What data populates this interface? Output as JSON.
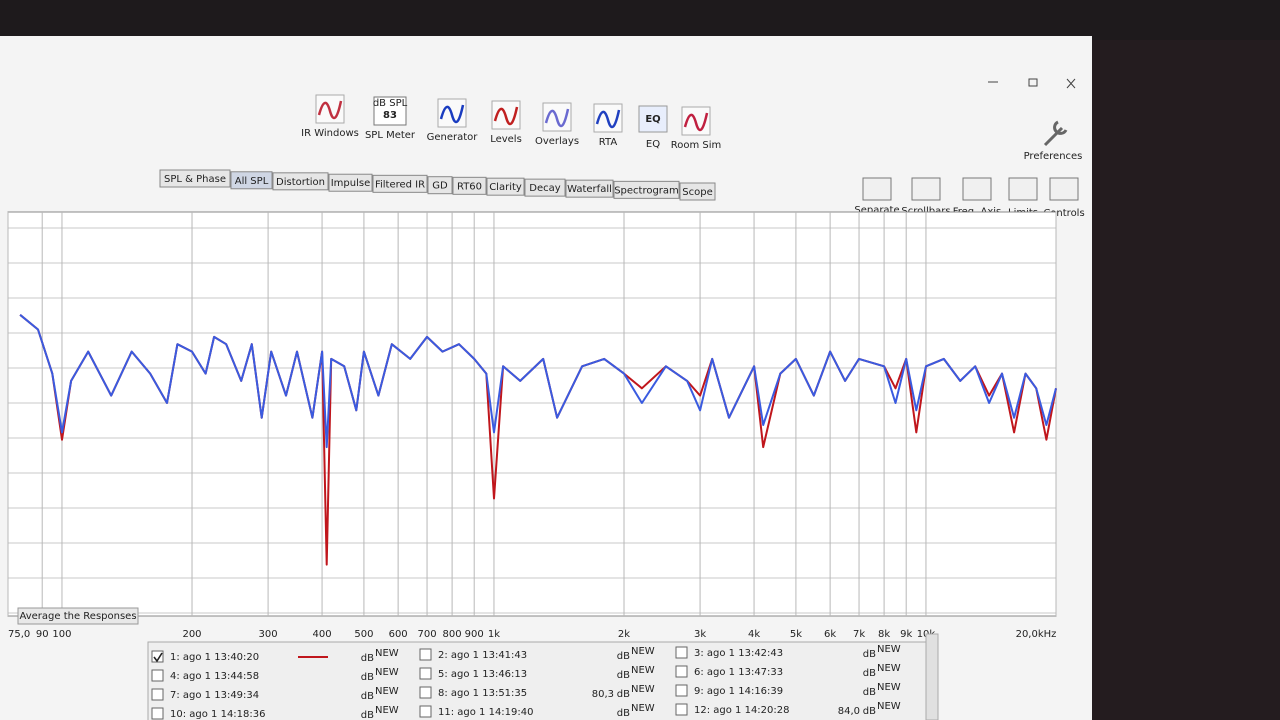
{
  "toolbar": {
    "items": [
      "IR Windows",
      "SPL Meter",
      "Generator",
      "Levels",
      "Overlays",
      "RTA",
      "EQ",
      "Room Sim"
    ],
    "spl_meter_unit": "dB SPL",
    "spl_meter_reading": "83",
    "eq_icon": "EQ",
    "preferences": "Preferences"
  },
  "tabs": {
    "items": [
      "SPL & Phase",
      "All SPL",
      "Distortion",
      "Impulse",
      "Filtered IR",
      "GD",
      "RT60",
      "Clarity",
      "Decay",
      "Waterfall",
      "Spectrogram",
      "Scope"
    ],
    "active": 1
  },
  "graph_tools": [
    "Separate",
    "Scrollbars",
    "Freq. Axis",
    "Limits",
    "Controls"
  ],
  "average_button": "Average the Responses",
  "chart_data": {
    "type": "line",
    "log_x": true,
    "xlim": [
      75,
      20000
    ],
    "ylim": [
      45,
      100
    ],
    "xticks": [
      {
        "value": 75,
        "label": "75,0"
      },
      90,
      100,
      200,
      300,
      400,
      500,
      600,
      700,
      800,
      900,
      {
        "value": 1000,
        "label": "1k"
      },
      {
        "value": 2000,
        "label": "2k"
      },
      {
        "value": 3000,
        "label": "3k"
      },
      {
        "value": 4000,
        "label": "4k"
      },
      {
        "value": 5000,
        "label": "5k"
      },
      {
        "value": 6000,
        "label": "6k"
      },
      {
        "value": 7000,
        "label": "7k"
      },
      {
        "value": 8000,
        "label": "8k"
      },
      {
        "value": 9000,
        "label": "9k"
      },
      {
        "value": 10000,
        "label": "10k"
      },
      {
        "value": 20000,
        "label": "20,0kHz"
      }
    ],
    "x": [
      80,
      88,
      95,
      100,
      105,
      115,
      130,
      145,
      160,
      175,
      185,
      200,
      215,
      225,
      240,
      260,
      275,
      290,
      305,
      330,
      350,
      380,
      400,
      410,
      420,
      450,
      480,
      500,
      540,
      580,
      640,
      700,
      760,
      830,
      900,
      960,
      1000,
      1050,
      1150,
      1300,
      1400,
      1600,
      1800,
      2000,
      2200,
      2500,
      2800,
      3000,
      3200,
      3500,
      4000,
      4200,
      4600,
      5000,
      5500,
      6000,
      6500,
      7000,
      8000,
      8500,
      9000,
      9500,
      10000,
      11000,
      12000,
      13000,
      14000,
      15000,
      16000,
      17000,
      18000,
      19000,
      20000
    ],
    "series": [
      {
        "color": "#c0161c",
        "values": [
          86,
          84,
          78,
          69,
          77,
          81,
          75,
          81,
          78,
          74,
          82,
          81,
          78,
          83,
          82,
          77,
          82,
          72,
          81,
          75,
          81,
          72,
          81,
          52,
          80,
          79,
          73,
          81,
          75,
          82,
          80,
          83,
          81,
          82,
          80,
          78,
          61,
          79,
          77,
          80,
          72,
          79,
          80,
          78,
          76,
          79,
          77,
          75,
          80,
          72,
          79,
          68,
          78,
          80,
          75,
          81,
          77,
          80,
          79,
          76,
          80,
          70,
          79,
          80,
          77,
          79,
          75,
          78,
          70,
          78,
          76,
          69,
          76
        ]
      },
      {
        "color": "#3a5be0",
        "values": [
          86,
          84,
          78,
          70,
          77,
          81,
          75,
          81,
          78,
          74,
          82,
          81,
          78,
          83,
          82,
          77,
          82,
          72,
          81,
          75,
          81,
          72,
          81,
          68,
          80,
          79,
          73,
          81,
          75,
          82,
          80,
          83,
          81,
          82,
          80,
          78,
          70,
          79,
          77,
          80,
          72,
          79,
          80,
          78,
          74,
          79,
          77,
          73,
          80,
          72,
          79,
          71,
          78,
          80,
          75,
          81,
          77,
          80,
          79,
          74,
          80,
          73,
          79,
          80,
          77,
          79,
          74,
          78,
          72,
          78,
          76,
          71,
          76
        ]
      }
    ]
  },
  "measurements": [
    {
      "label": "1: ago 1 13:40:20",
      "unit": "dB",
      "badge": "NEW",
      "color": "#b01818",
      "checked": true
    },
    {
      "label": "2: ago 1 13:41:43",
      "unit": "dB",
      "badge": "NEW",
      "color": "#333333",
      "checked": false
    },
    {
      "label": "3: ago 1 13:42:43",
      "unit": "dB",
      "badge": "NEW",
      "color": "#2a3a8a",
      "checked": false
    },
    {
      "label": "4: ago 1 13:44:58",
      "unit": "dB",
      "badge": "NEW",
      "color": "#c46010",
      "checked": false
    },
    {
      "label": "5: ago 1 13:46:13",
      "unit": "dB",
      "badge": "NEW",
      "color": "#333333",
      "checked": false
    },
    {
      "label": "6: ago 1 13:47:33",
      "unit": "dB",
      "badge": "NEW",
      "color": "#2a3a8a",
      "checked": false
    },
    {
      "label": "7: ago 1 13:49:34",
      "unit": "dB",
      "badge": "NEW",
      "color": "#8a1a1a",
      "checked": false
    },
    {
      "label": "8: ago 1 13:51:35",
      "unit": "dB",
      "badge": "NEW",
      "color": "#333333",
      "checked": false,
      "level": "80,3"
    },
    {
      "label": "9: ago 1 14:16:39",
      "unit": "dB",
      "badge": "NEW",
      "color": "#2a3a8a",
      "checked": false
    },
    {
      "label": "10: ago 1 14:18:36",
      "unit": "dB",
      "badge": "NEW",
      "color": "#8a1a1a",
      "checked": false
    },
    {
      "label": "11: ago 1 14:19:40",
      "unit": "dB",
      "badge": "NEW",
      "color": "#8a1a1a",
      "checked": false
    },
    {
      "label": "12: ago 1 14:20:28",
      "unit": "dB",
      "badge": "NEW",
      "color": "#333333",
      "checked": false,
      "level": "84,0"
    }
  ]
}
